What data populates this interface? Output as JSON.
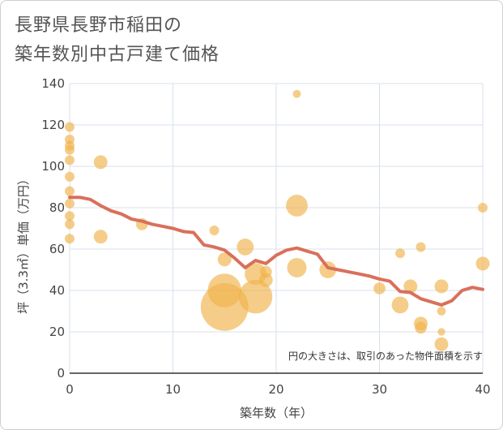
{
  "chart_data": {
    "type": "scatter",
    "title_lines": [
      "長野県長野市稲田の",
      "築年数別中古戸建て価格"
    ],
    "xlabel": "築年数（年）",
    "ylabel": "坪（3.3㎡）単価（万円）",
    "xlim": [
      0,
      40
    ],
    "ylim": [
      0,
      140
    ],
    "x_ticks": [
      0,
      10,
      20,
      30,
      40
    ],
    "y_ticks": [
      0,
      20,
      40,
      60,
      80,
      100,
      120,
      140
    ],
    "grid": true,
    "note": "円の大きさは、取引のあった物件面積を示す",
    "colors": {
      "bubble": "#f0b24a",
      "line": "#d9705a",
      "grid": "#d7e1ec",
      "plot_bg": "#ffffff"
    },
    "bubbles": [
      {
        "x": 0,
        "y": 119,
        "size": 1
      },
      {
        "x": 0,
        "y": 113,
        "size": 1
      },
      {
        "x": 0,
        "y": 110,
        "size": 1
      },
      {
        "x": 0,
        "y": 108,
        "size": 1
      },
      {
        "x": 0,
        "y": 103,
        "size": 1
      },
      {
        "x": 0,
        "y": 95,
        "size": 1
      },
      {
        "x": 0,
        "y": 88,
        "size": 1
      },
      {
        "x": 0,
        "y": 82,
        "size": 1
      },
      {
        "x": 0,
        "y": 76,
        "size": 1
      },
      {
        "x": 0,
        "y": 72,
        "size": 1
      },
      {
        "x": 0,
        "y": 65,
        "size": 1
      },
      {
        "x": 3,
        "y": 102,
        "size": 2
      },
      {
        "x": 3,
        "y": 66,
        "size": 2
      },
      {
        "x": 7,
        "y": 72,
        "size": 1.5
      },
      {
        "x": 14,
        "y": 69,
        "size": 1
      },
      {
        "x": 15,
        "y": 55,
        "size": 2
      },
      {
        "x": 15,
        "y": 40,
        "size": 12
      },
      {
        "x": 15,
        "y": 32,
        "size": 24
      },
      {
        "x": 17,
        "y": 61,
        "size": 3
      },
      {
        "x": 18,
        "y": 48,
        "size": 5
      },
      {
        "x": 18,
        "y": 37,
        "size": 12
      },
      {
        "x": 19,
        "y": 49,
        "size": 1.5
      },
      {
        "x": 19,
        "y": 45,
        "size": 2
      },
      {
        "x": 22,
        "y": 135,
        "size": 0.7
      },
      {
        "x": 22,
        "y": 81,
        "size": 5
      },
      {
        "x": 22,
        "y": 51,
        "size": 4
      },
      {
        "x": 25,
        "y": 50,
        "size": 3
      },
      {
        "x": 30,
        "y": 41,
        "size": 1.5
      },
      {
        "x": 32,
        "y": 58,
        "size": 1
      },
      {
        "x": 32,
        "y": 33,
        "size": 3
      },
      {
        "x": 33,
        "y": 42,
        "size": 2
      },
      {
        "x": 34,
        "y": 61,
        "size": 1
      },
      {
        "x": 34,
        "y": 24,
        "size": 2
      },
      {
        "x": 34,
        "y": 22,
        "size": 1.5
      },
      {
        "x": 36,
        "y": 42,
        "size": 2
      },
      {
        "x": 36,
        "y": 30,
        "size": 0.8
      },
      {
        "x": 36,
        "y": 20,
        "size": 0.6
      },
      {
        "x": 36,
        "y": 14,
        "size": 2
      },
      {
        "x": 40,
        "y": 80,
        "size": 1
      },
      {
        "x": 40,
        "y": 53,
        "size": 2
      }
    ],
    "trend": {
      "x": [
        0,
        1,
        2,
        3,
        4,
        5,
        6,
        7,
        8,
        9,
        10,
        11,
        12,
        13,
        14,
        15,
        16,
        17,
        18,
        19,
        20,
        21,
        22,
        23,
        24,
        25,
        26,
        27,
        28,
        29,
        30,
        31,
        32,
        33,
        34,
        35,
        36,
        37,
        38,
        39,
        40
      ],
      "y": [
        85,
        85,
        84,
        81,
        78.5,
        77,
        74.5,
        73.5,
        72,
        71,
        70,
        68.5,
        68,
        62,
        61,
        59.5,
        55.5,
        51,
        54.5,
        53,
        57,
        59.5,
        60.5,
        59,
        57.5,
        51,
        50,
        49,
        48,
        47,
        45.5,
        44.5,
        39.5,
        39,
        36,
        34.5,
        33,
        35,
        40,
        41.5,
        40.5
      ]
    }
  }
}
